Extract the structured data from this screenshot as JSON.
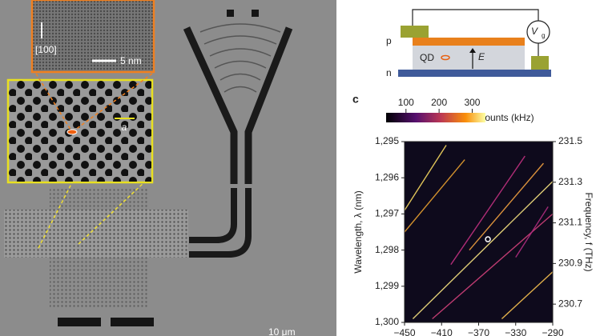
{
  "panel_label": "c",
  "micrograph": {
    "direction": "[100]",
    "inset_scale": "5 nm",
    "lattice": "a",
    "scale": "10 μm"
  },
  "schematic": {
    "p": "p",
    "n": "n",
    "qd": "QD",
    "field": "E",
    "voltage": "V",
    "voltage_sub": "g"
  },
  "chart_data": {
    "type": "streaks",
    "xlim": [
      -450,
      -290
    ],
    "xticks": [
      {
        "value": -450,
        "label": "−450"
      },
      {
        "value": -410,
        "label": "−410"
      },
      {
        "value": -370,
        "label": "−370"
      },
      {
        "value": -330,
        "label": "−330"
      },
      {
        "value": -290,
        "label": "−290"
      }
    ],
    "ylabel": "Wavelength, λ (nm)",
    "ylim": [
      1295,
      1300
    ],
    "y_inverted": true,
    "yticks": [
      {
        "value": 1295,
        "label": "1,295"
      },
      {
        "value": 1296,
        "label": "1,296"
      },
      {
        "value": 1297,
        "label": "1,297"
      },
      {
        "value": 1298,
        "label": "1,298"
      },
      {
        "value": 1299,
        "label": "1,299"
      },
      {
        "value": 1300,
        "label": "1,300"
      }
    ],
    "y2label": "Frequency, f (THz)",
    "y2lim": [
      230.61,
      231.5
    ],
    "y2ticks": [
      231.5,
      231.3,
      231.1,
      230.9,
      230.7
    ],
    "colorbar": {
      "label": "RF counts (kHz)",
      "lim": [
        40,
        340
      ],
      "ticks": [
        100,
        200,
        300
      ]
    },
    "series": [
      {
        "color": "#f6d860",
        "x": [
          -450,
          -405
        ],
        "values": [
          1296.9,
          1295.1
        ]
      },
      {
        "color": "#e8a030",
        "x": [
          -450,
          -385
        ],
        "values": [
          1297.5,
          1295.5
        ]
      },
      {
        "color": "#f4e080",
        "x": [
          -441,
          -290
        ],
        "values": [
          1299.9,
          1296.1
        ]
      },
      {
        "color": "#d0407a",
        "x": [
          -420,
          -290
        ],
        "values": [
          1299.9,
          1297.0
        ]
      },
      {
        "color": "#f0a040",
        "x": [
          -380,
          -300
        ],
        "values": [
          1298.0,
          1295.6
        ]
      },
      {
        "color": "#c03080",
        "x": [
          -400,
          -320
        ],
        "values": [
          1298.4,
          1295.4
        ]
      },
      {
        "color": "#f6c050",
        "x": [
          -345,
          -290
        ],
        "values": [
          1299.9,
          1298.6
        ]
      },
      {
        "color": "#b02c80",
        "x": [
          -330,
          -295
        ],
        "values": [
          1298.2,
          1296.8
        ]
      }
    ],
    "marker": {
      "x": -360,
      "y": 1297.7
    }
  }
}
